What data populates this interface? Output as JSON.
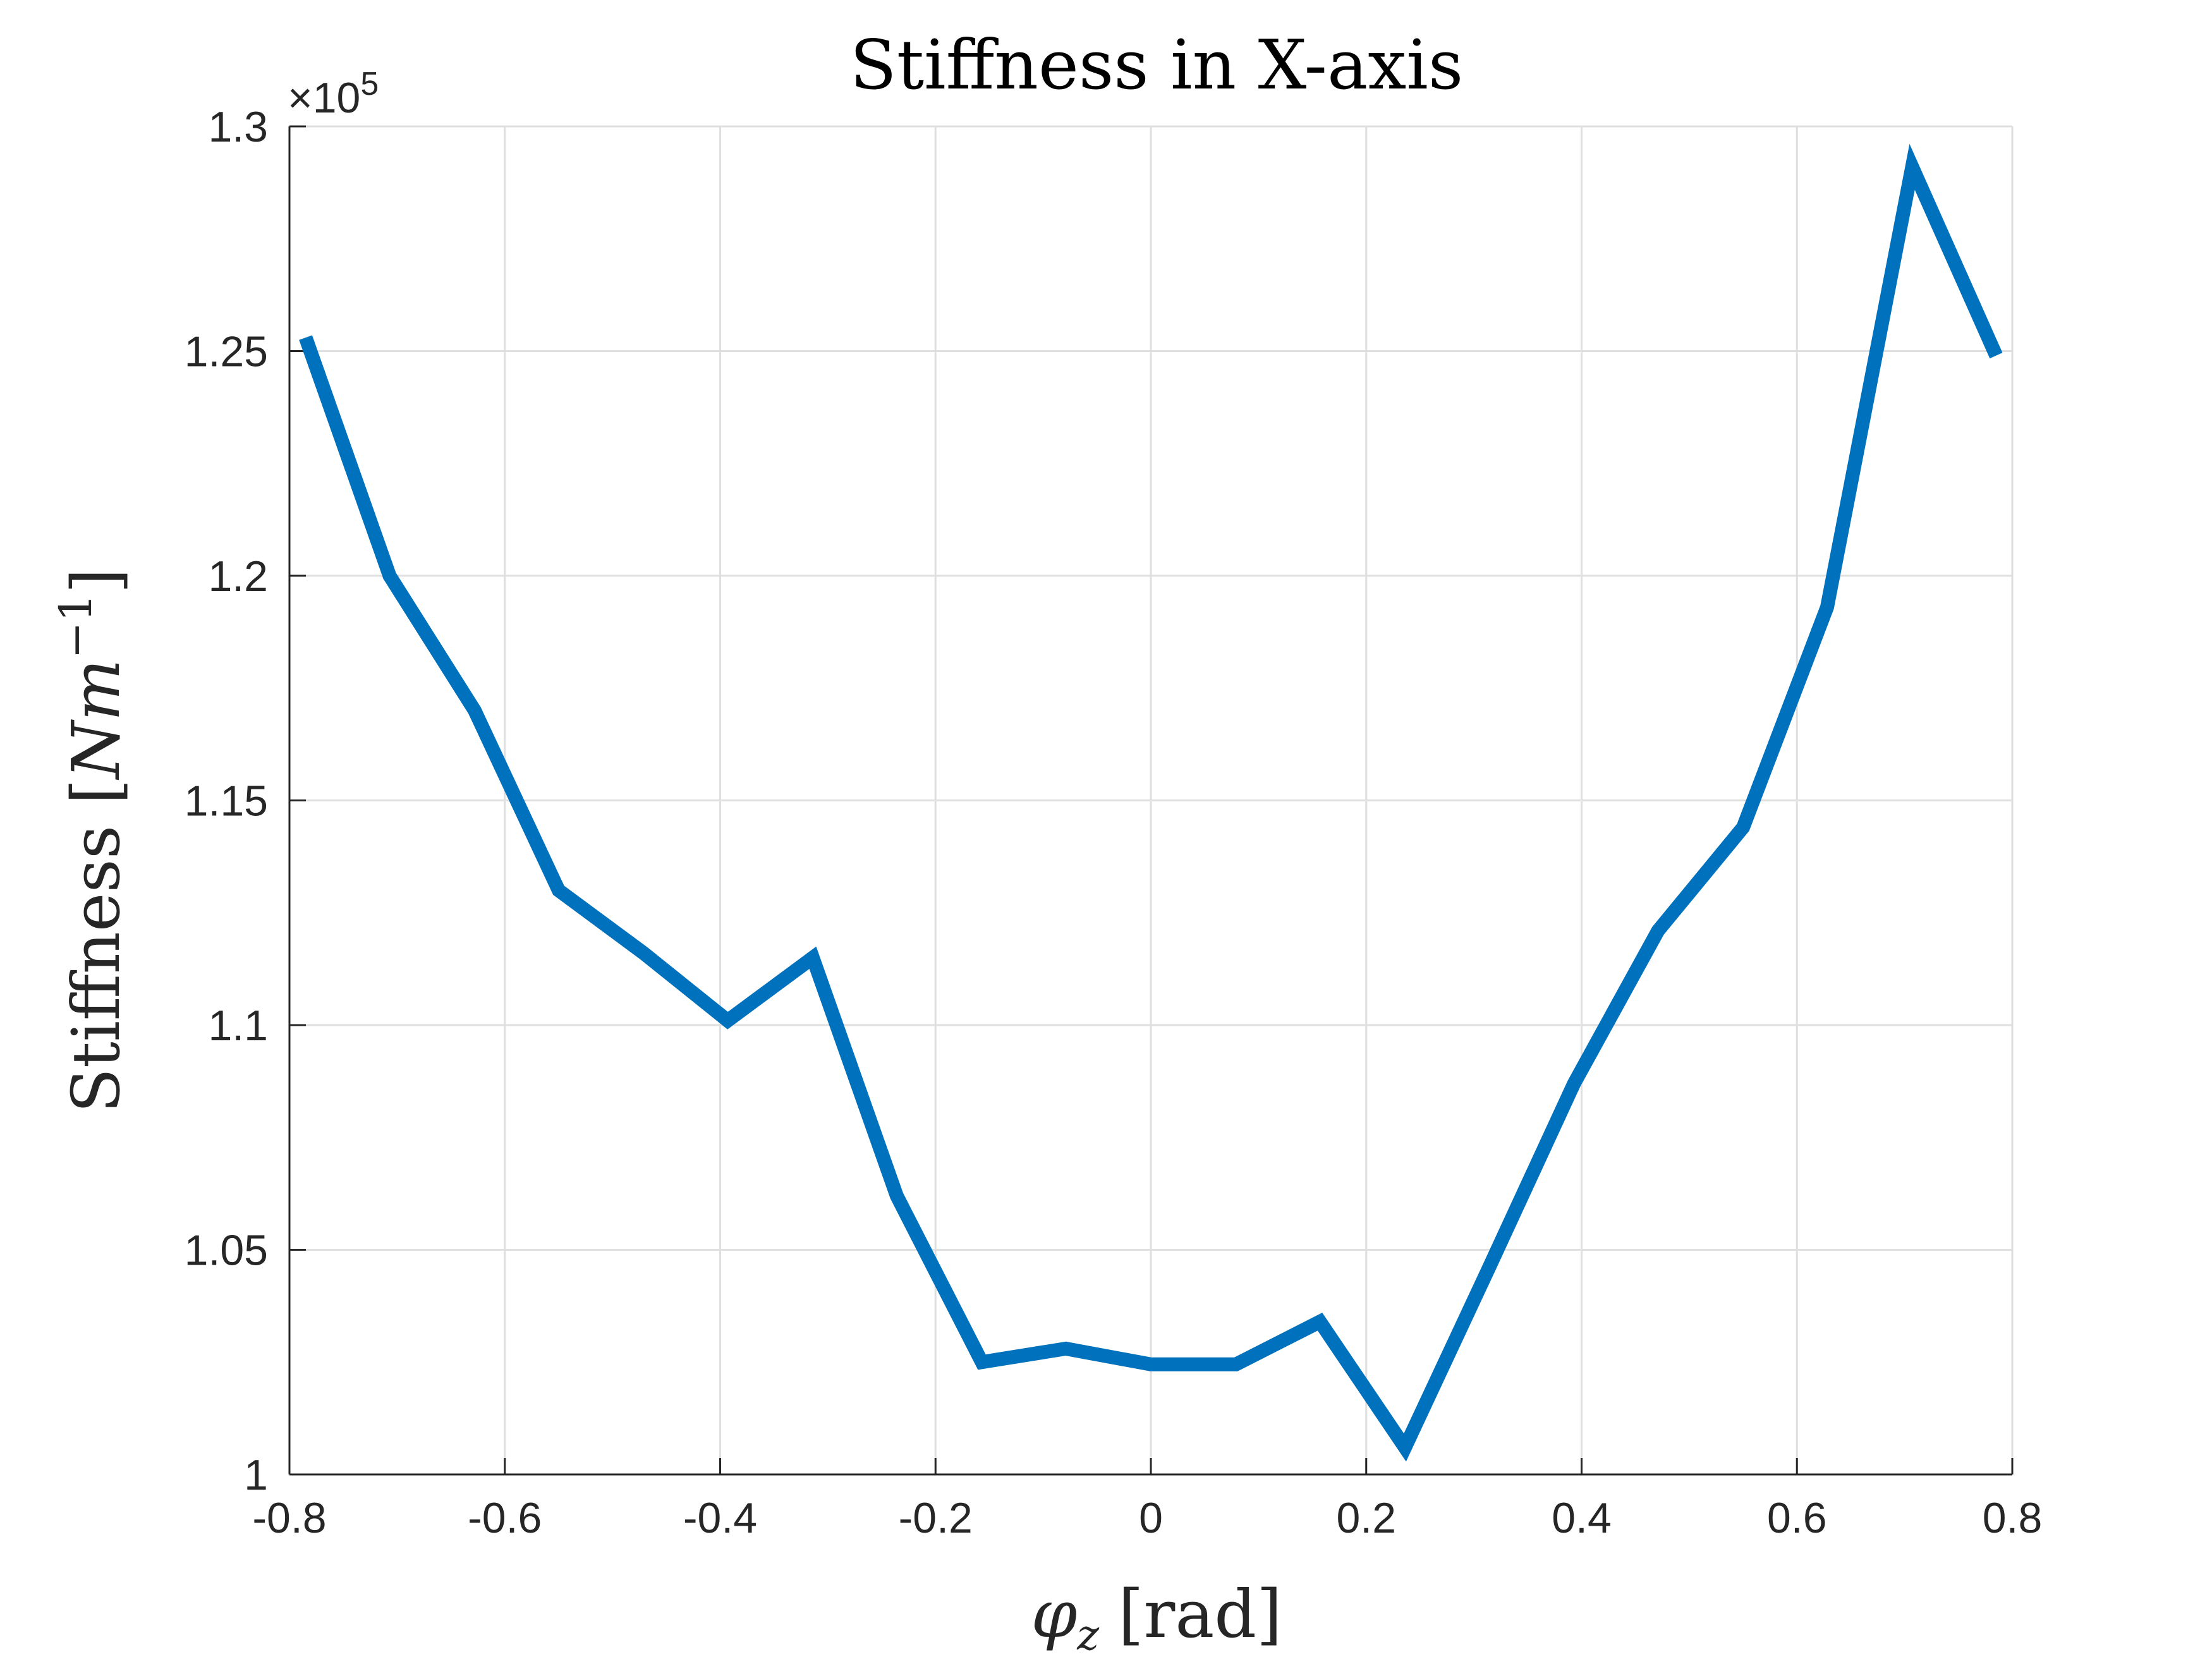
{
  "chart_data": {
    "type": "line",
    "title": "Stiffness in X-axis",
    "xlabel_symbol": "φ",
    "xlabel_sub": "z",
    "xlabel_unit": "[rad]",
    "ylabel_text": "Stiffness [",
    "ylabel_N": "N",
    "ylabel_m": "m",
    "ylabel_exp": "−1",
    "ylabel_close": "]",
    "exponent_base": "×10",
    "exponent_power": "5",
    "xlim": [
      -0.8,
      0.8
    ],
    "ylim": [
      1.0,
      1.3
    ],
    "x_ticks": [
      -0.8,
      -0.6,
      -0.4,
      -0.2,
      0,
      0.2,
      0.4,
      0.6,
      0.8
    ],
    "x_tick_labels": [
      "-0.8",
      "-0.6",
      "-0.4",
      "-0.2",
      "0",
      "0.2",
      "0.4",
      "0.6",
      "0.8"
    ],
    "y_ticks": [
      1.0,
      1.05,
      1.1,
      1.15,
      1.2,
      1.25,
      1.3
    ],
    "y_tick_labels": [
      "1",
      "1.05",
      "1.1",
      "1.15",
      "1.2",
      "1.25",
      "1.3"
    ],
    "grid": true,
    "line_color": "#0072BD",
    "series": [
      {
        "x": [
          -0.785,
          -0.707,
          -0.628,
          -0.55,
          -0.471,
          -0.393,
          -0.314,
          -0.236,
          -0.157,
          -0.079,
          0.0,
          0.079,
          0.157,
          0.236,
          0.314,
          0.393,
          0.471,
          0.55,
          0.628,
          0.707,
          0.785
        ],
        "values": [
          1.253,
          1.2,
          1.17,
          1.13,
          1.116,
          1.101,
          1.115,
          1.062,
          1.025,
          1.028,
          1.0245,
          1.0245,
          1.034,
          1.006,
          1.046,
          1.087,
          1.121,
          1.144,
          1.193,
          1.291,
          1.249
        ]
      }
    ]
  }
}
